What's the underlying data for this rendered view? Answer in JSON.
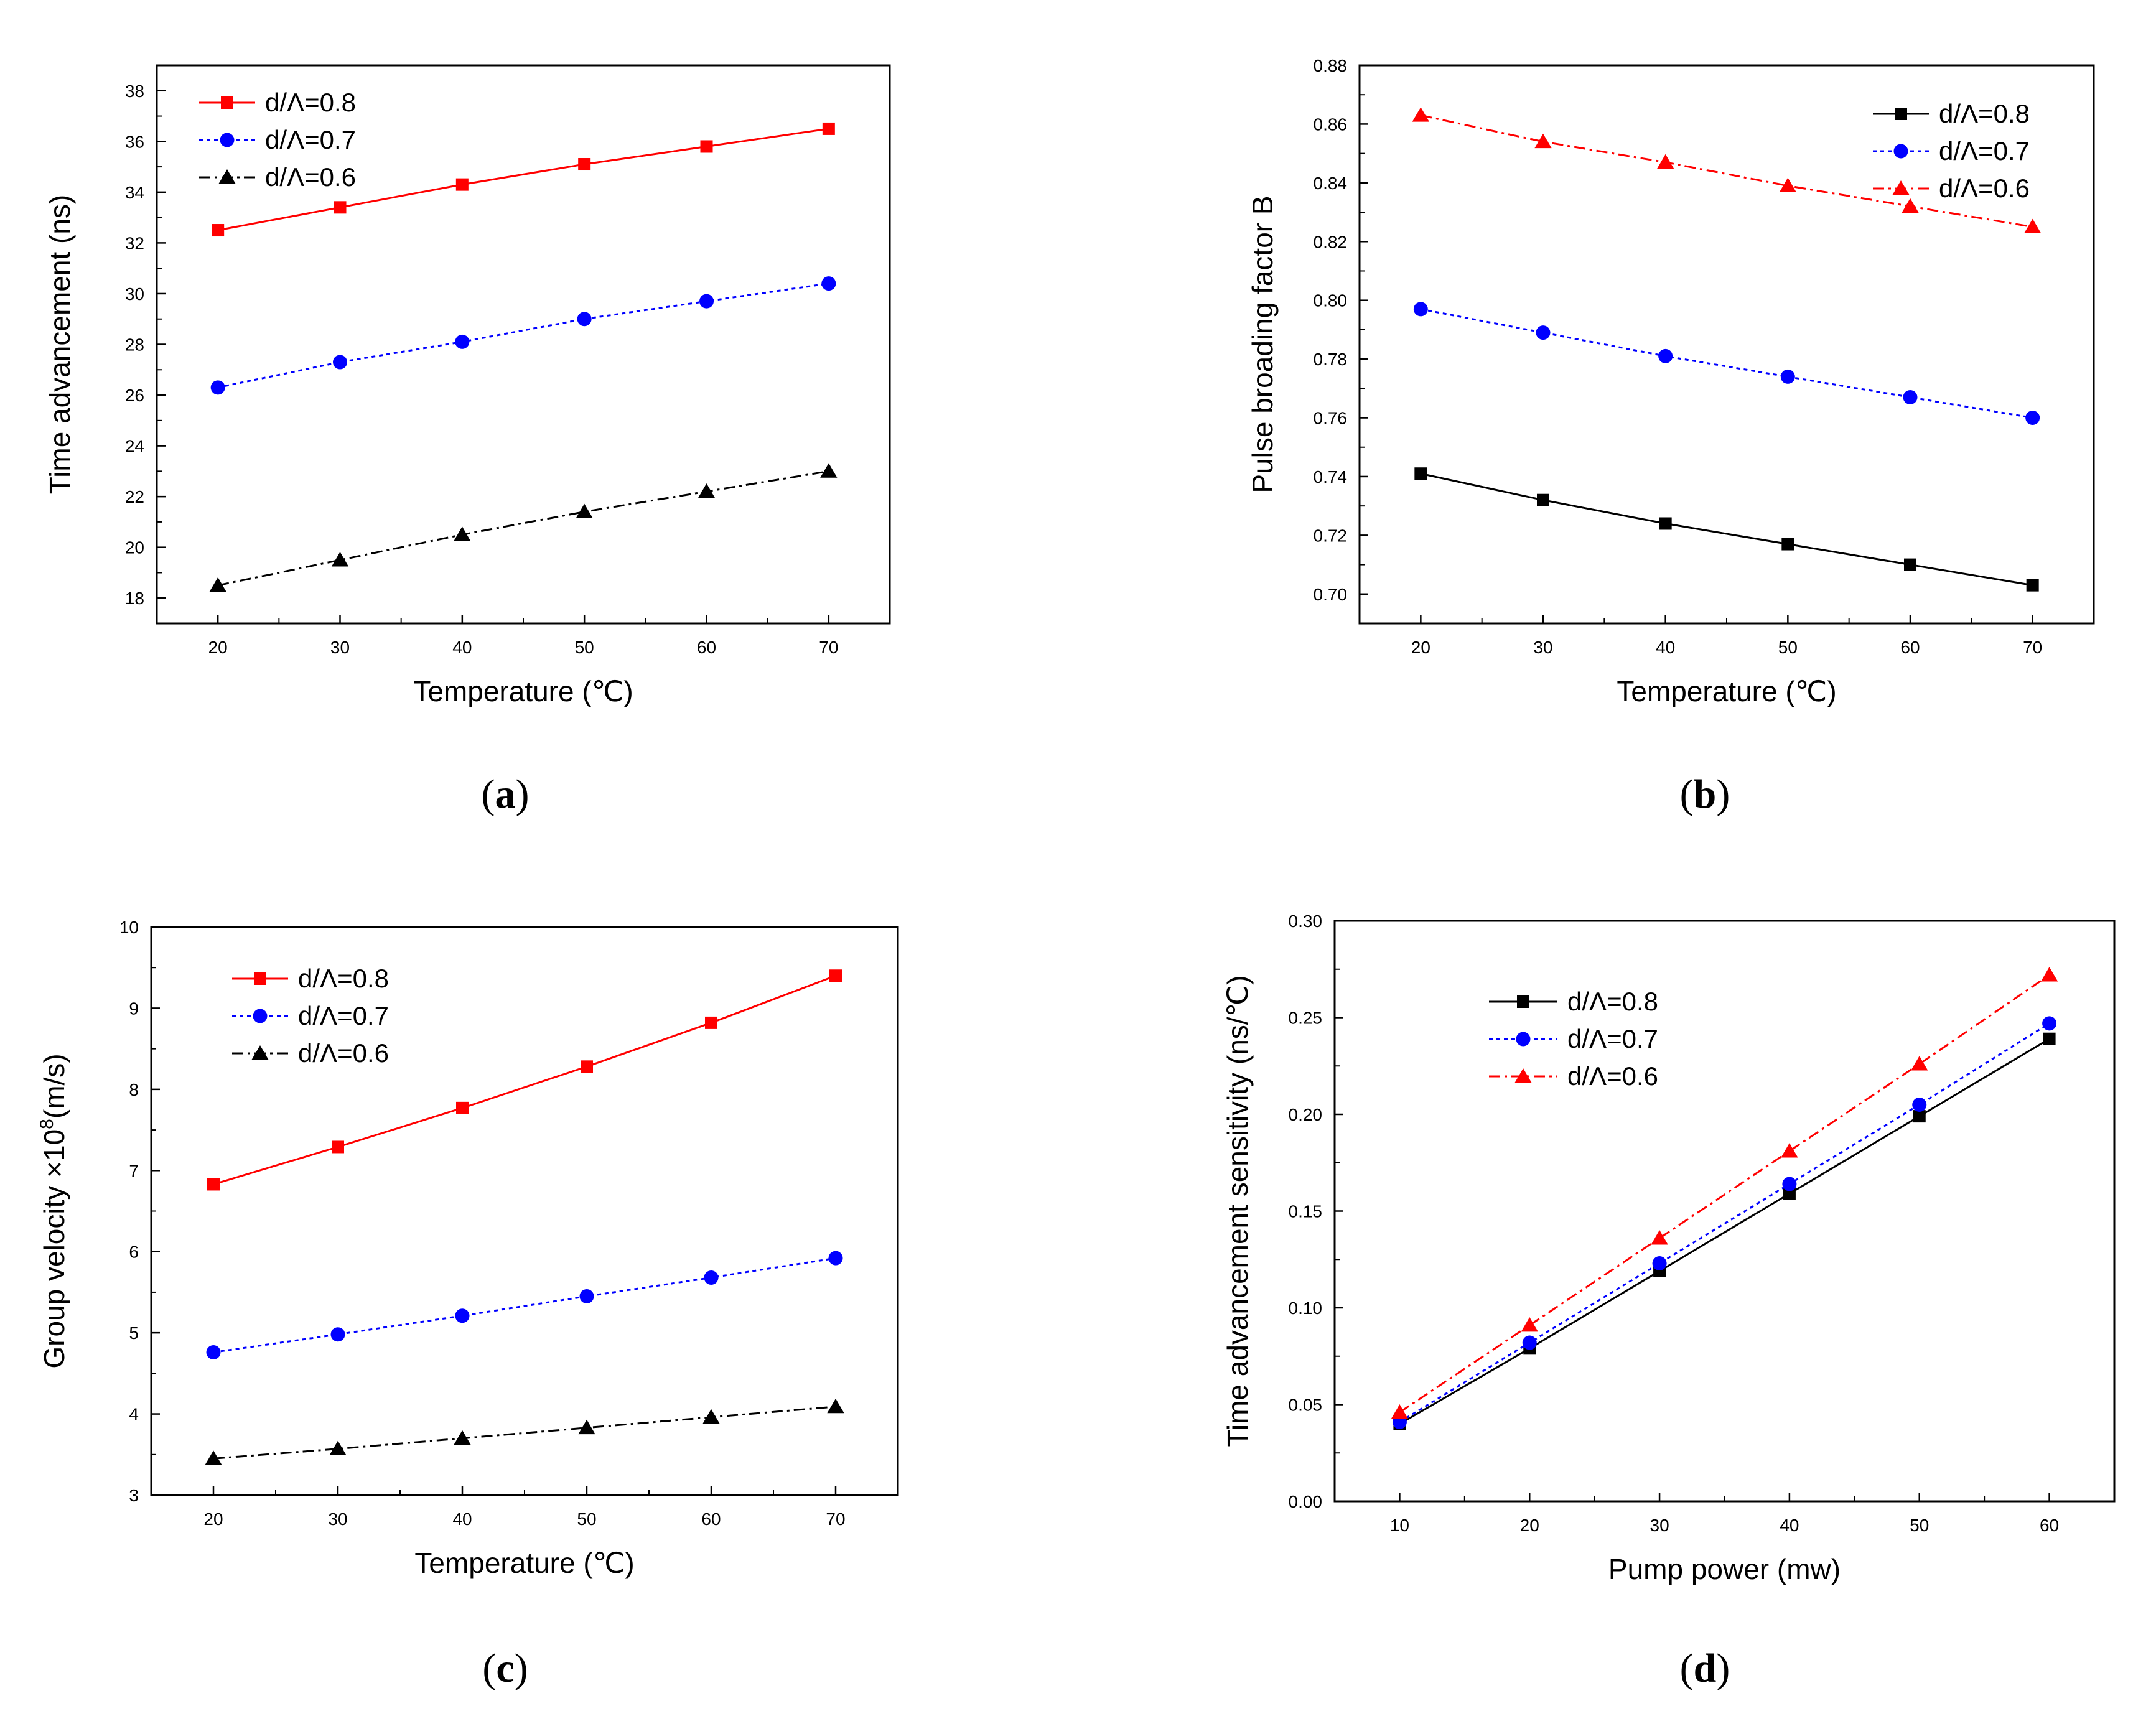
{
  "chart_data": [
    {
      "type": "line",
      "panel": "a",
      "caption_letter": "a",
      "xlabel": "Temperature (℃)",
      "ylabel": "Time advancement (ns)",
      "ylabel_sup": "",
      "ylabel_tail": "",
      "xlim": [
        15,
        75
      ],
      "ylim": [
        17,
        39
      ],
      "xticks": [
        20,
        30,
        40,
        50,
        60,
        70
      ],
      "yticks": [
        18,
        20,
        22,
        24,
        26,
        28,
        30,
        32,
        34,
        36,
        38
      ],
      "ytick_format": 0,
      "legend": "top-left",
      "x": [
        20,
        30,
        40,
        50,
        60,
        70
      ],
      "series": [
        {
          "name": "d/Λ=0.8",
          "color": "#ff0000",
          "marker": "square",
          "dash": "",
          "values": [
            32.5,
            33.4,
            34.3,
            35.1,
            35.8,
            36.5
          ]
        },
        {
          "name": "d/Λ=0.7",
          "color": "#0000ff",
          "marker": "circle",
          "dash": "6,6",
          "values": [
            26.3,
            27.3,
            28.1,
            29.0,
            29.7,
            30.4
          ]
        },
        {
          "name": "d/Λ=0.6",
          "color": "#000000",
          "marker": "triangle",
          "dash": "18,7,4,7",
          "values": [
            18.5,
            19.5,
            20.5,
            21.4,
            22.2,
            23.0
          ]
        }
      ]
    },
    {
      "type": "line",
      "panel": "b",
      "caption_letter": "b",
      "xlabel": "Temperature (℃)",
      "ylabel": "Pulse broading factor B",
      "ylabel_sup": "",
      "ylabel_tail": "",
      "xlim": [
        15,
        75
      ],
      "ylim": [
        0.69,
        0.88
      ],
      "xticks": [
        20,
        30,
        40,
        50,
        60,
        70
      ],
      "yticks": [
        0.7,
        0.72,
        0.74,
        0.76,
        0.78,
        0.8,
        0.82,
        0.84,
        0.86,
        0.88
      ],
      "ytick_format": 2,
      "legend": "top-right",
      "x": [
        20,
        30,
        40,
        50,
        60,
        70
      ],
      "series": [
        {
          "name": "d/Λ=0.8",
          "color": "#000000",
          "marker": "square",
          "dash": "",
          "values": [
            0.741,
            0.732,
            0.724,
            0.717,
            0.71,
            0.703
          ]
        },
        {
          "name": "d/Λ=0.7",
          "color": "#0000ff",
          "marker": "circle",
          "dash": "6,6",
          "values": [
            0.797,
            0.789,
            0.781,
            0.774,
            0.767,
            0.76
          ]
        },
        {
          "name": "d/Λ=0.6",
          "color": "#ff0000",
          "marker": "triangle",
          "dash": "18,7,4,7",
          "values": [
            0.863,
            0.854,
            0.847,
            0.839,
            0.832,
            0.825
          ]
        }
      ]
    },
    {
      "type": "line",
      "panel": "c",
      "caption_letter": "c",
      "xlabel": "Temperature (℃)",
      "ylabel": "Group velocity ×10",
      "ylabel_sup": "8",
      "ylabel_tail": "(m/s)",
      "xlim": [
        15,
        75
      ],
      "ylim": [
        3,
        10
      ],
      "xticks": [
        20,
        30,
        40,
        50,
        60,
        70
      ],
      "yticks": [
        3,
        4,
        5,
        6,
        7,
        8,
        9,
        10
      ],
      "ytick_format": 0,
      "legend": "top-left",
      "x": [
        20,
        30,
        40,
        50,
        60,
        70
      ],
      "series": [
        {
          "name": "d/Λ=0.8",
          "color": "#ff0000",
          "marker": "square",
          "dash": "",
          "values": [
            6.83,
            7.29,
            7.77,
            8.28,
            8.82,
            9.4
          ]
        },
        {
          "name": "d/Λ=0.7",
          "color": "#0000ff",
          "marker": "circle",
          "dash": "6,6",
          "values": [
            4.76,
            4.98,
            5.21,
            5.45,
            5.68,
            5.92
          ]
        },
        {
          "name": "d/Λ=0.6",
          "color": "#000000",
          "marker": "triangle",
          "dash": "18,7,4,7",
          "values": [
            3.45,
            3.57,
            3.7,
            3.83,
            3.96,
            4.09
          ]
        }
      ]
    },
    {
      "type": "line",
      "panel": "d",
      "caption_letter": "d",
      "xlabel": "Pump power (mw)",
      "ylabel": "Time advancement sensitivity (ns/℃)",
      "ylabel_sup": "",
      "ylabel_tail": "",
      "xlim": [
        5,
        65
      ],
      "ylim": [
        0,
        0.3
      ],
      "xticks": [
        10,
        20,
        30,
        40,
        50,
        60
      ],
      "yticks": [
        0.0,
        0.05,
        0.1,
        0.15,
        0.2,
        0.25,
        0.3
      ],
      "ytick_format": 2,
      "legend": "upper-left-inset",
      "x": [
        10,
        20,
        30,
        40,
        50,
        60
      ],
      "series": [
        {
          "name": "d/Λ=0.8",
          "color": "#000000",
          "marker": "square",
          "dash": "",
          "values": [
            0.04,
            0.079,
            0.119,
            0.159,
            0.199,
            0.239
          ]
        },
        {
          "name": "d/Λ=0.7",
          "color": "#0000ff",
          "marker": "circle",
          "dash": "6,6",
          "values": [
            0.041,
            0.082,
            0.123,
            0.164,
            0.205,
            0.247
          ]
        },
        {
          "name": "d/Λ=0.6",
          "color": "#ff0000",
          "marker": "triangle",
          "dash": "18,7,4,7",
          "values": [
            0.046,
            0.091,
            0.136,
            0.181,
            0.226,
            0.272
          ]
        }
      ]
    }
  ]
}
